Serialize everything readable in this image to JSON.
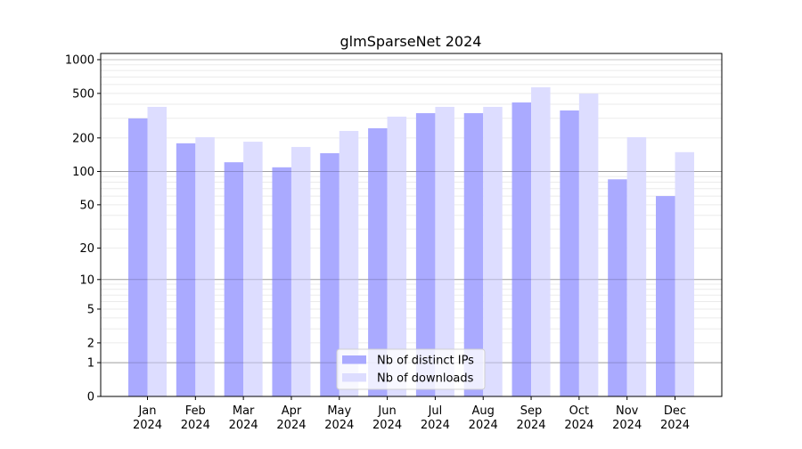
{
  "chart_data": {
    "type": "bar",
    "title": "glmSparseNet 2024",
    "xlabel": "",
    "ylabel": "",
    "yscale": "log(1+y)",
    "ylim": [
      0,
      1136
    ],
    "yticks": [
      0,
      1,
      2,
      5,
      10,
      20,
      50,
      100,
      200,
      500,
      1000
    ],
    "grid": true,
    "legend_position": "lower center",
    "categories": [
      "Jan\n2024",
      "Feb\n2024",
      "Mar\n2024",
      "Apr\n2024",
      "May\n2024",
      "Jun\n2024",
      "Jul\n2024",
      "Aug\n2024",
      "Sep\n2024",
      "Oct\n2024",
      "Nov\n2024",
      "Dec\n2024"
    ],
    "series": [
      {
        "name": "Nb of distinct IPs",
        "color": "#aaaaff",
        "values": [
          299,
          179,
          121,
          109,
          146,
          244,
          333,
          333,
          415,
          352,
          85,
          60
        ]
      },
      {
        "name": "Nb of downloads",
        "color": "#ddddff",
        "values": [
          379,
          203,
          185,
          166,
          231,
          310,
          379,
          379,
          567,
          498,
          203,
          149
        ]
      }
    ]
  }
}
